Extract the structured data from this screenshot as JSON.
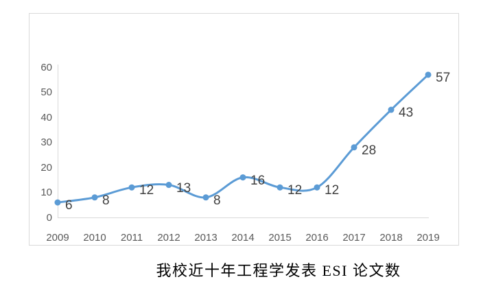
{
  "chart_data": {
    "type": "line",
    "title": "我校近十年工程学发表 ESI 论文数",
    "categories": [
      "2009",
      "2010",
      "2011",
      "2012",
      "2013",
      "2014",
      "2015",
      "2016",
      "2017",
      "2018",
      "2019"
    ],
    "values": [
      6,
      8,
      12,
      13,
      8,
      16,
      12,
      12,
      28,
      43,
      57
    ],
    "y_ticks": [
      0,
      10,
      20,
      30,
      40,
      50,
      60
    ],
    "ylim": [
      0,
      60
    ],
    "xlabel": "",
    "ylabel": "",
    "grid": false,
    "legend": "none",
    "line_smooth": true,
    "marker": "circle",
    "data_labels_shown": true,
    "colors": {
      "line": "#5B9BD5",
      "marker": "#5B9BD5",
      "data_label": "#404040",
      "axis_tick_label": "#595959",
      "axis_line": "#D9D9D9",
      "chart_border": "#D9D9D9",
      "title": "#000000",
      "background": "#FFFFFF"
    }
  }
}
